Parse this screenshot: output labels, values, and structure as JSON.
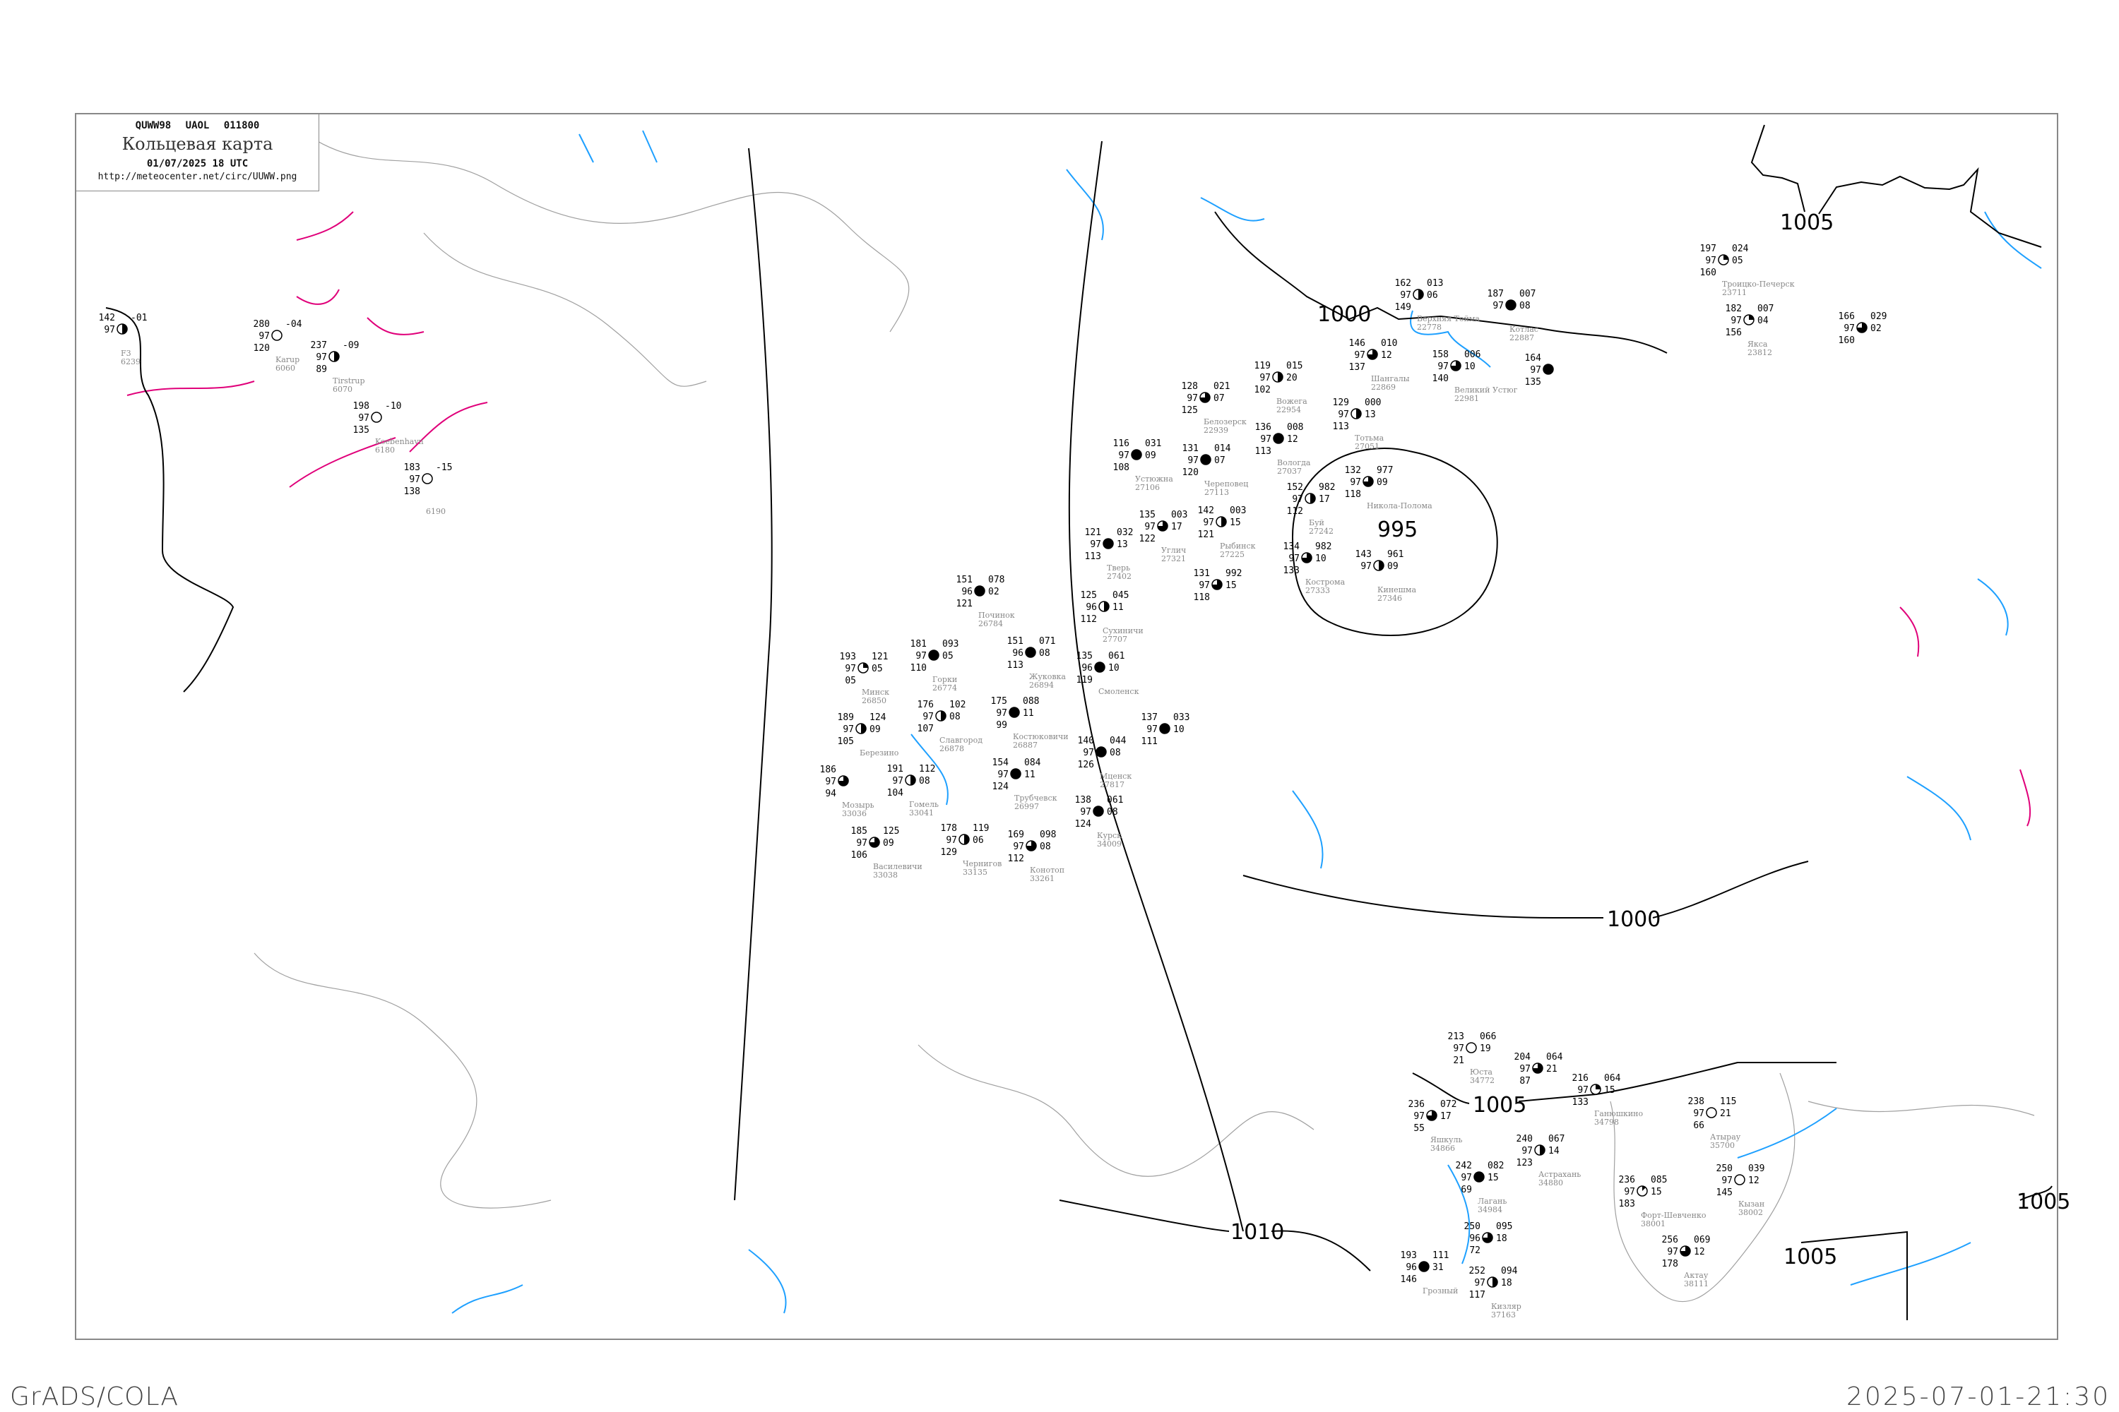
{
  "header": {
    "bulletin": "QUWW98  UAOL  011800",
    "title": "Кольцевая карта",
    "datetime": "01/07/2025 18 UTC",
    "url": "http://meteocenter.net/circ/UUWW.png"
  },
  "footer": {
    "left": "GrADS/COLA",
    "right": "2025-07-01-21:30"
  },
  "colors": {
    "isobar": "#000000",
    "isotherm": "#1ea0ff",
    "isotherm_cold": "#e0007a",
    "coastline": "#a0a0a0",
    "frame": "#888888",
    "station_name": "#888888",
    "flag_green": "#22cc33",
    "flag_red": "#ee3366"
  },
  "isobar_labels": [
    "1005",
    "1000",
    "995",
    "1000",
    "1005",
    "1010",
    "1005",
    "1005"
  ],
  "stations": [
    {
      "name": "Верхняя Тойма",
      "id": "22778",
      "t": "162",
      "vis": "97",
      "td": "149",
      "p": "013",
      "dp": "06",
      "cc": 4
    },
    {
      "name": "Шангалы",
      "id": "22869",
      "t": "146",
      "vis": "97",
      "td": "137",
      "p": "010",
      "dp": "12",
      "cc": 6
    },
    {
      "name": "Великий Устюг",
      "id": "22981",
      "t": "158",
      "vis": "97",
      "td": "140",
      "p": "006",
      "dp": "10",
      "cc": 6
    },
    {
      "name": "Котлас",
      "id": "22887",
      "t": "187",
      "vis": "97",
      "td": "",
      "p": "007",
      "dp": "08",
      "cc": 8
    },
    {
      "name": "",
      "id": "",
      "t": "164",
      "vis": "97",
      "td": "135",
      "p": "",
      "dp": "",
      "cc": 8
    },
    {
      "name": "Минск",
      "id": "26850",
      "t": "193",
      "vis": "97",
      "td": "05",
      "p": "121",
      "dp": "05",
      "cc": 2
    },
    {
      "name": "Горки",
      "id": "26774",
      "t": "181",
      "vis": "97",
      "td": "110",
      "p": "093",
      "dp": "05",
      "cc": 8
    },
    {
      "name": "Березино",
      "id": "",
      "t": "189",
      "vis": "97",
      "td": "105",
      "p": "124",
      "dp": "09",
      "cc": 4
    },
    {
      "name": "Славгород",
      "id": "26878",
      "t": "176",
      "vis": "97",
      "td": "107",
      "p": "102",
      "dp": "08",
      "cc": 4
    },
    {
      "name": "Костюковичи",
      "id": "26887",
      "t": "175",
      "vis": "97",
      "td": "99",
      "p": "088",
      "dp": "11",
      "cc": 8
    },
    {
      "name": "Жуковка",
      "id": "26894",
      "t": "151",
      "vis": "96",
      "td": "113",
      "p": "071",
      "dp": "08",
      "cc": 8
    },
    {
      "name": "Починок",
      "id": "26784",
      "t": "151",
      "vis": "96",
      "td": "121",
      "p": "078",
      "dp": "02",
      "cc": 8
    },
    {
      "name": "Смоленск",
      "id": "",
      "t": "135",
      "vis": "96",
      "td": "119",
      "p": "061",
      "dp": "10",
      "cc": 8
    },
    {
      "name": "Гомель",
      "id": "33041",
      "t": "191",
      "vis": "97",
      "td": "104",
      "p": "112",
      "dp": "08",
      "cc": 4
    },
    {
      "name": "Мозырь",
      "id": "33036",
      "t": "186",
      "vis": "97",
      "td": "94",
      "p": "",
      "dp": "",
      "cc": 6
    },
    {
      "name": "Василевичи",
      "id": "33038",
      "t": "185",
      "vis": "97",
      "td": "106",
      "p": "125",
      "dp": "09",
      "cc": 6
    },
    {
      "name": "Трубчевск",
      "id": "26997",
      "t": "154",
      "vis": "97",
      "td": "124",
      "p": "084",
      "dp": "11",
      "cc": 8
    },
    {
      "name": "Чернигов",
      "id": "33135",
      "t": "178",
      "vis": "97",
      "td": "129",
      "p": "119",
      "dp": "06",
      "cc": 4
    },
    {
      "name": "Конотоп",
      "id": "33261",
      "t": "169",
      "vis": "97",
      "td": "112",
      "p": "098",
      "dp": "08",
      "cc": 6
    },
    {
      "name": "Мценск",
      "id": "27817",
      "t": "140",
      "vis": "97",
      "td": "126",
      "p": "044",
      "dp": "08",
      "cc": 8
    },
    {
      "name": "Курск",
      "id": "34009",
      "t": "138",
      "vis": "97",
      "td": "124",
      "p": "061",
      "dp": "08",
      "cc": 8
    },
    {
      "name": "Сухиничи",
      "id": "27707",
      "t": "125",
      "vis": "96",
      "td": "112",
      "p": "045",
      "dp": "11",
      "cc": 4
    },
    {
      "name": "",
      "id": "",
      "t": "137",
      "vis": "97",
      "td": "111",
      "p": "033",
      "dp": "10",
      "cc": 8
    },
    {
      "name": "Троицко-Печерск",
      "id": "23711",
      "t": "197",
      "vis": "97",
      "td": "160",
      "p": "024",
      "dp": "05",
      "cc": 2
    },
    {
      "name": "Якса",
      "id": "23812",
      "t": "182",
      "vis": "97",
      "td": "156",
      "p": "007",
      "dp": "04",
      "cc": 2
    },
    {
      "name": "",
      "id": "",
      "t": "166",
      "vis": "97",
      "td": "160",
      "p": "029",
      "dp": "02",
      "cc": 6
    },
    {
      "name": "Юста",
      "id": "34772",
      "t": "213",
      "vis": "97",
      "td": "21",
      "p": "066",
      "dp": "19",
      "cc": 0
    },
    {
      "name": "",
      "id": "",
      "t": "204",
      "vis": "97",
      "td": "87",
      "p": "064",
      "dp": "21",
      "cc": 6
    },
    {
      "name": "Ганюшкино",
      "id": "34798",
      "t": "216",
      "vis": "97",
      "td": "133",
      "p": "064",
      "dp": "15",
      "cc": 2
    },
    {
      "name": "Астрахань",
      "id": "34880",
      "t": "240",
      "vis": "97",
      "td": "123",
      "p": "067",
      "dp": "14",
      "cc": 4
    },
    {
      "name": "Яшкуль",
      "id": "34866",
      "t": "236",
      "vis": "97",
      "td": "55",
      "p": "072",
      "dp": "17",
      "cc": 6
    },
    {
      "name": "Лагань",
      "id": "34984",
      "t": "242",
      "vis": "97",
      "td": "69",
      "p": "082",
      "dp": "15",
      "cc": 8
    },
    {
      "name": "Атырау",
      "id": "35700",
      "t": "238",
      "vis": "97",
      "td": "66",
      "p": "115",
      "dp": "21",
      "cc": 0
    },
    {
      "name": "Форт-Шевченко",
      "id": "38001",
      "t": "236",
      "vis": "97",
      "td": "183",
      "p": "085",
      "dp": "15",
      "cc": 1
    },
    {
      "name": "Кызан",
      "id": "38002",
      "t": "250",
      "vis": "97",
      "td": "145",
      "p": "039",
      "dp": "12",
      "cc": 0
    },
    {
      "name": "Актау",
      "id": "38111",
      "t": "256",
      "vis": "97",
      "td": "178",
      "p": "069",
      "dp": "12",
      "cc": 6
    },
    {
      "name": "",
      "id": "",
      "t": "250",
      "vis": "96",
      "td": "72",
      "p": "095",
      "dp": "18",
      "cc": 6
    },
    {
      "name": "Кизляр",
      "id": "37163",
      "t": "252",
      "vis": "97",
      "td": "117",
      "p": "094",
      "dp": "18",
      "cc": 4
    },
    {
      "name": "Грозный",
      "id": "",
      "t": "193",
      "vis": "96",
      "td": "146",
      "p": "111",
      "dp": "31",
      "cc": 8
    },
    {
      "name": "Белозерск",
      "id": "22939",
      "t": "128",
      "vis": "97",
      "td": "125",
      "p": "021",
      "dp": "07",
      "cc": 6
    },
    {
      "name": "Вожега",
      "id": "22954",
      "t": "119",
      "vis": "97",
      "td": "102",
      "p": "015",
      "dp": "20",
      "cc": 4
    },
    {
      "name": "Череповец",
      "id": "27113",
      "t": "131",
      "vis": "97",
      "td": "120",
      "p": "014",
      "dp": "07",
      "cc": 8
    },
    {
      "name": "Вологда",
      "id": "27037",
      "t": "136",
      "vis": "97",
      "td": "113",
      "p": "008",
      "dp": "12",
      "cc": 8
    },
    {
      "name": "Тотьма",
      "id": "27051",
      "t": "129",
      "vis": "97",
      "td": "113",
      "p": "000",
      "dp": "13",
      "cc": 4
    },
    {
      "name": "Устюжна",
      "id": "27106",
      "t": "116",
      "vis": "97",
      "td": "108",
      "p": "031",
      "dp": "09",
      "cc": 8
    },
    {
      "name": "Рыбинск",
      "id": "27225",
      "t": "142",
      "vis": "97",
      "td": "121",
      "p": "003",
      "dp": "15",
      "cc": 4
    },
    {
      "name": "Углич",
      "id": "27321",
      "t": "135",
      "vis": "97",
      "td": "122",
      "p": "003",
      "dp": "17",
      "cc": 6
    },
    {
      "name": "Буй",
      "id": "27242",
      "t": "152",
      "vis": "97",
      "td": "112",
      "p": "982",
      "dp": "17",
      "cc": 4
    },
    {
      "name": "Кострома",
      "id": "27333",
      "t": "134",
      "vis": "97",
      "td": "133",
      "p": "982",
      "dp": "10",
      "cc": 6
    },
    {
      "name": "Кинешма",
      "id": "27346",
      "t": "143",
      "vis": "97",
      "td": "",
      "p": "961",
      "dp": "09",
      "cc": 4
    },
    {
      "name": "Никола-Полома",
      "id": "",
      "t": "132",
      "vis": "97",
      "td": "118",
      "p": "977",
      "dp": "09",
      "cc": 6
    },
    {
      "name": "Тверь",
      "id": "27402",
      "t": "121",
      "vis": "97",
      "td": "113",
      "p": "032",
      "dp": "13",
      "cc": 8
    },
    {
      "name": "",
      "id": "",
      "t": "131",
      "vis": "97",
      "td": "118",
      "p": "992",
      "dp": "15",
      "cc": 6
    },
    {
      "name": "Tirstrup",
      "id": "6070",
      "t": "237",
      "vis": "97",
      "td": "89",
      "p": "-09",
      "dp": "",
      "cc": 4
    },
    {
      "name": "Karup",
      "id": "6060",
      "t": "280",
      "vis": "97",
      "td": "120",
      "p": "-04",
      "dp": "",
      "cc": 0
    },
    {
      "name": "Koebenhavn",
      "id": "6180",
      "t": "198",
      "vis": "97",
      "td": "135",
      "p": "-10",
      "dp": "",
      "cc": 0
    },
    {
      "name": "",
      "id": "6190",
      "t": "183",
      "vis": "97",
      "td": "138",
      "p": "-15",
      "dp": "",
      "cc": 0
    },
    {
      "name": "F3",
      "id": "6239",
      "t": "142",
      "vis": "97",
      "td": "",
      "p": "-01",
      "dp": "",
      "cc": 4
    }
  ]
}
